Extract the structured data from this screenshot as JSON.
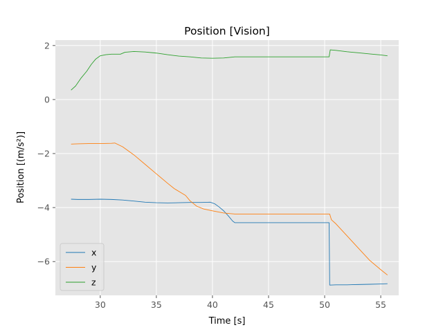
{
  "chart_data": {
    "type": "line",
    "title": "Position [Vision]",
    "xlabel": "Time [s]",
    "ylabel": "Position [(m/s²)]",
    "xlim": [
      26.0,
      56.6
    ],
    "ylim": [
      -7.25,
      2.2
    ],
    "xticks": [
      30,
      35,
      40,
      45,
      50,
      55
    ],
    "yticks": [
      2,
      0,
      -2,
      -4,
      -6
    ],
    "grid": true,
    "legend": "lower-left",
    "series": [
      {
        "name": "x",
        "color": "#1f77b4",
        "points": [
          [
            27.4,
            -3.69
          ],
          [
            28,
            -3.7
          ],
          [
            29,
            -3.7
          ],
          [
            30,
            -3.69
          ],
          [
            31,
            -3.7
          ],
          [
            32,
            -3.72
          ],
          [
            33,
            -3.76
          ],
          [
            34,
            -3.8
          ],
          [
            35,
            -3.82
          ],
          [
            36,
            -3.83
          ],
          [
            37,
            -3.82
          ],
          [
            38,
            -3.81
          ],
          [
            39,
            -3.81
          ],
          [
            39.8,
            -3.8
          ],
          [
            40.2,
            -3.86
          ],
          [
            40.6,
            -3.98
          ],
          [
            41,
            -4.12
          ],
          [
            41.4,
            -4.3
          ],
          [
            41.8,
            -4.5
          ],
          [
            42,
            -4.56
          ],
          [
            43,
            -4.56
          ],
          [
            45,
            -4.56
          ],
          [
            48,
            -4.56
          ],
          [
            50.4,
            -4.56
          ],
          [
            50.45,
            -6.87
          ],
          [
            51,
            -6.86
          ],
          [
            52,
            -6.86
          ],
          [
            53,
            -6.85
          ],
          [
            54,
            -6.84
          ],
          [
            55,
            -6.83
          ],
          [
            55.6,
            -6.82
          ]
        ]
      },
      {
        "name": "y",
        "color": "#ff7f0e",
        "points": [
          [
            27.4,
            -1.65
          ],
          [
            28,
            -1.64
          ],
          [
            29,
            -1.63
          ],
          [
            30,
            -1.63
          ],
          [
            31,
            -1.62
          ],
          [
            31.3,
            -1.61
          ],
          [
            32,
            -1.75
          ],
          [
            33,
            -2.05
          ],
          [
            34,
            -2.4
          ],
          [
            35,
            -2.75
          ],
          [
            36,
            -3.1
          ],
          [
            36.6,
            -3.3
          ],
          [
            37.2,
            -3.45
          ],
          [
            37.6,
            -3.55
          ],
          [
            38,
            -3.75
          ],
          [
            38.6,
            -3.95
          ],
          [
            39.2,
            -4.05
          ],
          [
            40,
            -4.12
          ],
          [
            41,
            -4.2
          ],
          [
            42,
            -4.24
          ],
          [
            45,
            -4.24
          ],
          [
            48,
            -4.24
          ],
          [
            50.45,
            -4.24
          ],
          [
            50.6,
            -4.45
          ],
          [
            51,
            -4.6
          ],
          [
            52,
            -5.05
          ],
          [
            53,
            -5.5
          ],
          [
            54,
            -5.95
          ],
          [
            55,
            -6.3
          ],
          [
            55.6,
            -6.5
          ]
        ]
      },
      {
        "name": "z",
        "color": "#2ca02c",
        "points": [
          [
            27.4,
            0.35
          ],
          [
            27.8,
            0.5
          ],
          [
            28.3,
            0.8
          ],
          [
            28.8,
            1.05
          ],
          [
            29.2,
            1.3
          ],
          [
            29.6,
            1.5
          ],
          [
            30,
            1.62
          ],
          [
            30.5,
            1.66
          ],
          [
            31,
            1.68
          ],
          [
            31.8,
            1.68
          ],
          [
            32.2,
            1.75
          ],
          [
            33,
            1.78
          ],
          [
            34,
            1.76
          ],
          [
            35,
            1.72
          ],
          [
            36,
            1.66
          ],
          [
            37,
            1.61
          ],
          [
            38,
            1.58
          ],
          [
            39,
            1.54
          ],
          [
            40,
            1.53
          ],
          [
            41,
            1.54
          ],
          [
            42,
            1.58
          ],
          [
            45,
            1.58
          ],
          [
            48,
            1.58
          ],
          [
            50.4,
            1.58
          ],
          [
            50.5,
            1.84
          ],
          [
            51,
            1.82
          ],
          [
            52,
            1.77
          ],
          [
            53,
            1.73
          ],
          [
            54,
            1.69
          ],
          [
            55,
            1.65
          ],
          [
            55.6,
            1.62
          ]
        ]
      }
    ]
  }
}
